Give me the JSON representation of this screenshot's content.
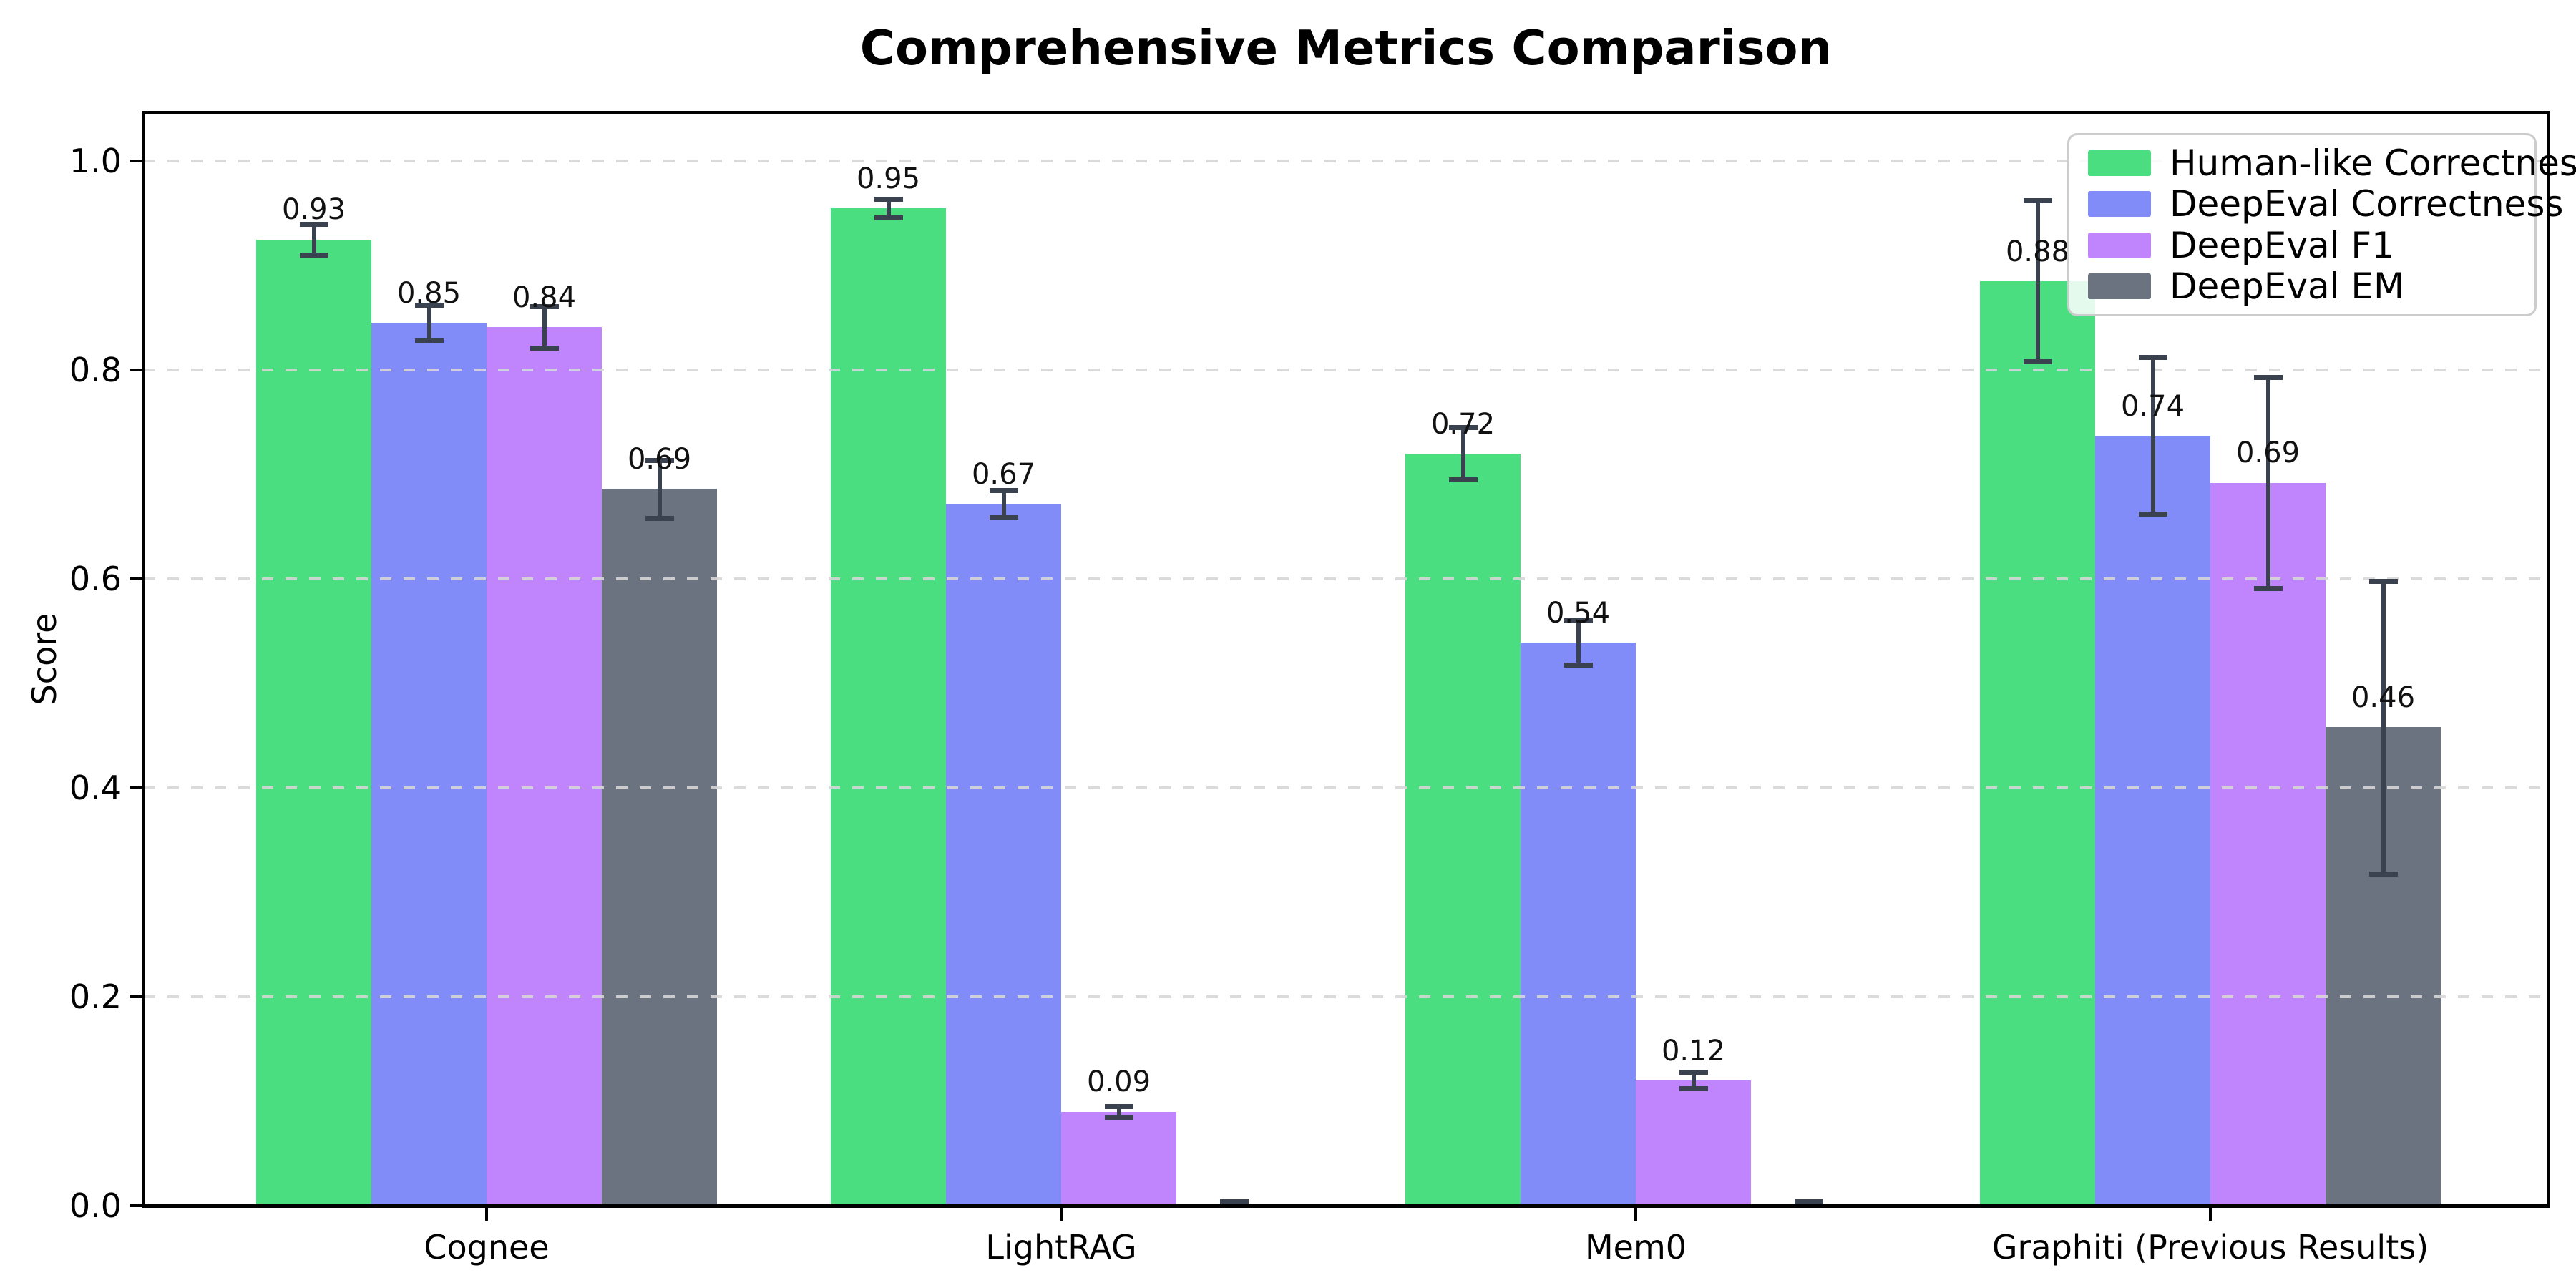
{
  "chart_data": {
    "type": "bar",
    "title": "Comprehensive Metrics Comparison",
    "xlabel": "",
    "ylabel": "Score",
    "categories": [
      "Cognee",
      "LightRAG",
      "Mem0",
      "Graphiti (Previous Results)"
    ],
    "series": [
      {
        "name": "Human-like Correctness",
        "color": "#4ade80",
        "values": [
          0.93,
          0.95,
          0.72,
          0.88
        ],
        "bar_heights": [
          0.925,
          0.955,
          0.72,
          0.885
        ],
        "errors": [
          0.015,
          0.009,
          0.025,
          0.077
        ],
        "labels": [
          "0.93",
          "0.95",
          "0.72",
          "0.88"
        ]
      },
      {
        "name": "DeepEval Correctness",
        "color": "#818cf8",
        "values": [
          0.85,
          0.67,
          0.54,
          0.74
        ],
        "bar_heights": [
          0.845,
          0.672,
          0.539,
          0.737
        ],
        "errors": [
          0.017,
          0.013,
          0.021,
          0.075
        ],
        "labels": [
          "0.85",
          "0.67",
          "0.54",
          "0.74"
        ]
      },
      {
        "name": "DeepEval F1",
        "color": "#c084fc",
        "values": [
          0.84,
          0.09,
          0.12,
          0.69
        ],
        "bar_heights": [
          0.841,
          0.09,
          0.12,
          0.692
        ],
        "errors": [
          0.02,
          0.005,
          0.008,
          0.101
        ],
        "labels": [
          "0.84",
          "0.09",
          "0.12",
          "0.69"
        ]
      },
      {
        "name": "DeepEval EM",
        "color": "#6b7280",
        "values": [
          0.69,
          0.0,
          0.0,
          0.46
        ],
        "bar_heights": [
          0.686,
          0.0,
          0.0,
          0.458
        ],
        "errors": [
          0.028,
          0.004,
          0.004,
          0.14
        ],
        "labels": [
          "0.69",
          "",
          "",
          "0.46"
        ]
      }
    ],
    "yticks": [
      "0.0",
      "0.2",
      "0.4",
      "0.6",
      "0.8",
      "1.0"
    ],
    "ylim": [
      0.0,
      1.047
    ],
    "grid": "dashed-horizontal",
    "grid_color": "#d6d6d6",
    "errorbar_color": "#3a4250",
    "legend_position": "upper right",
    "legend_entries": [
      "Human-like Correctness",
      "DeepEval Correctness",
      "DeepEval F1",
      "DeepEval EM"
    ]
  }
}
